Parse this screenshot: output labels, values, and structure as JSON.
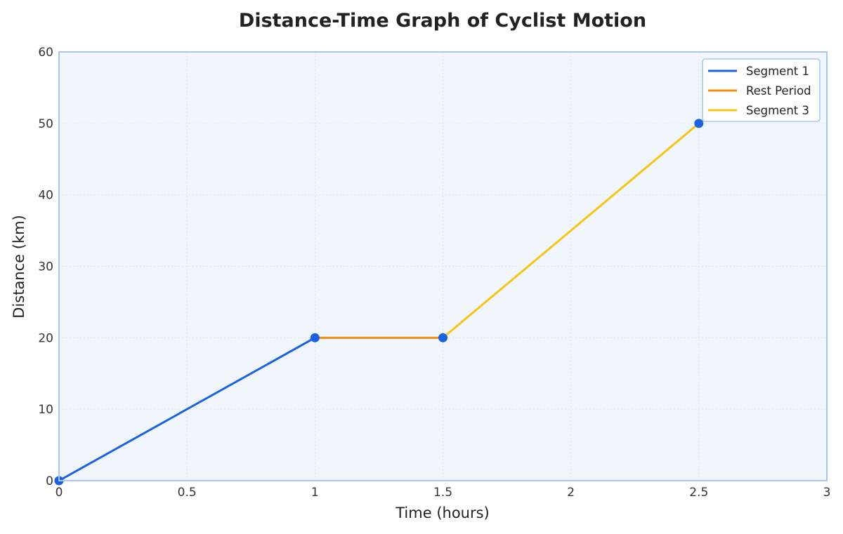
{
  "chart_data": {
    "type": "line",
    "title": "Distance-Time Graph of Cyclist Motion",
    "xlabel": "Time (hours)",
    "ylabel": "Distance (km)",
    "xlim": [
      0,
      3
    ],
    "ylim": [
      0,
      60
    ],
    "x_ticks": [
      0,
      0.5,
      1,
      1.5,
      2,
      2.5,
      3
    ],
    "x_tick_labels": [
      "0",
      "0.5",
      "1",
      "1.5",
      "2",
      "2.5",
      "3"
    ],
    "y_ticks": [
      0,
      10,
      20,
      30,
      40,
      50,
      60
    ],
    "y_tick_labels": [
      "0",
      "10",
      "20",
      "30",
      "40",
      "50",
      "60"
    ],
    "grid": true,
    "legend_position": "top-right",
    "series": [
      {
        "name": "Segment 1",
        "color": "#1a62e0",
        "x": [
          0,
          1
        ],
        "y": [
          0,
          20
        ]
      },
      {
        "name": "Rest Period",
        "color": "#f28c0f",
        "x": [
          1,
          1.5
        ],
        "y": [
          20,
          20
        ]
      },
      {
        "name": "Segment 3",
        "color": "#f5c518",
        "x": [
          1.5,
          2.5
        ],
        "y": [
          20,
          50
        ]
      }
    ],
    "markers": {
      "color": "#1a62e0",
      "x": [
        0,
        1,
        1.5,
        2.5
      ],
      "y": [
        0,
        20,
        20,
        50
      ]
    },
    "colors": {
      "plot_background": "#f1f6fc",
      "plot_border": "#a8c5f0",
      "grid": "#dde5ef"
    }
  }
}
